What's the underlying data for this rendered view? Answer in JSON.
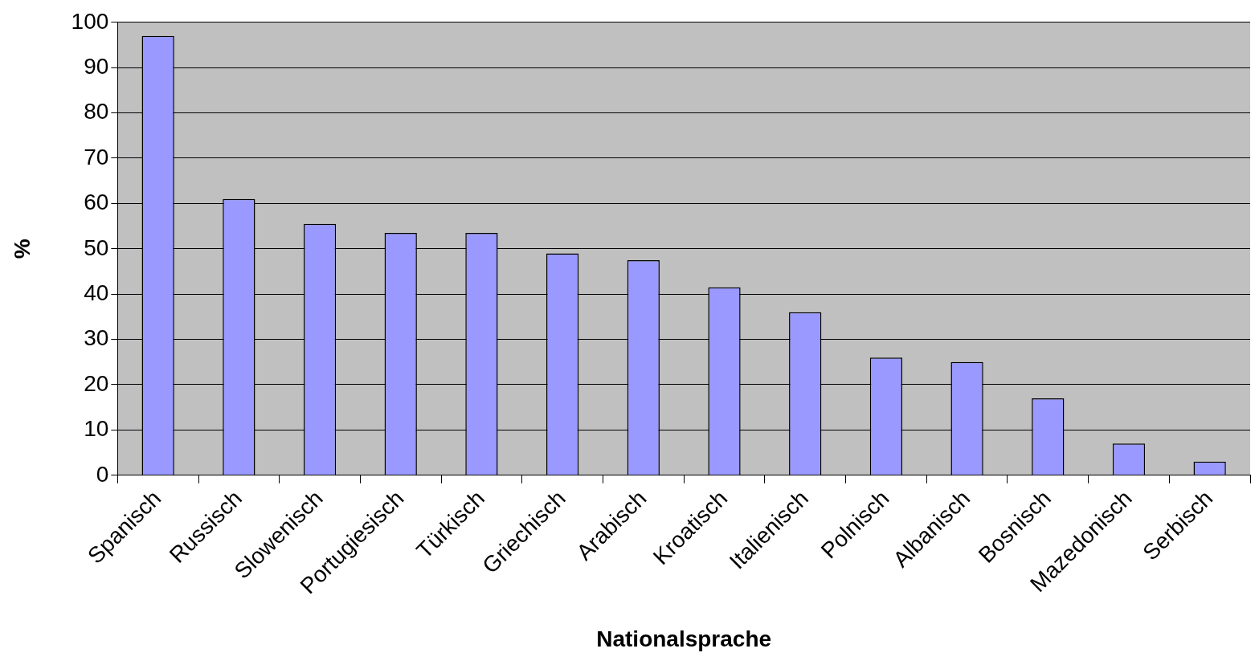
{
  "chart_data": {
    "type": "bar",
    "xlabel": "Nationalsprache",
    "ylabel": "%",
    "categories": [
      "Spanisch",
      "Russisch",
      "Slowenisch",
      "Portugiesisch",
      "Türkisch",
      "Griechisch",
      "Arabisch",
      "Kroatisch",
      "Italienisch",
      "Polnisch",
      "Albanisch",
      "Bosnisch",
      "Mazedonisch",
      "Serbisch"
    ],
    "values": [
      97,
      61,
      55.5,
      53.5,
      53.5,
      49,
      47.5,
      41.5,
      36,
      26,
      25,
      17,
      7,
      3
    ],
    "color": "#9999ff",
    "ylim": [
      0,
      100
    ],
    "yticks": [
      0,
      10,
      20,
      30,
      40,
      50,
      60,
      70,
      80,
      90,
      100
    ],
    "grid": "y"
  }
}
